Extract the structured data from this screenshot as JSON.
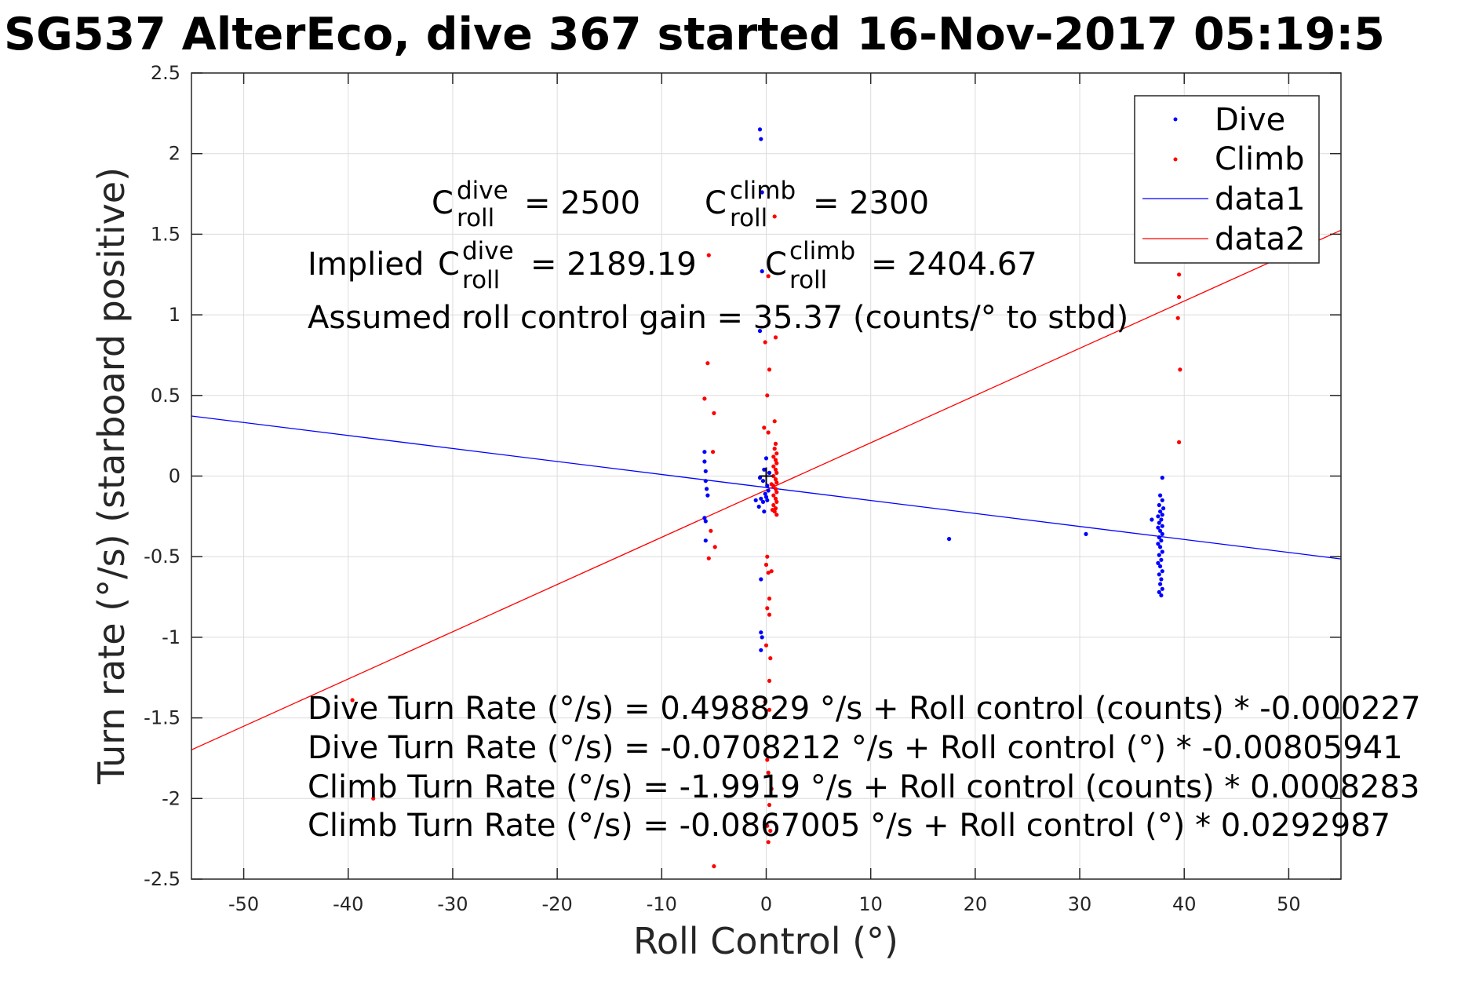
{
  "chart_data": {
    "type": "scatter",
    "title": "SG537 AlterEco, dive 367 started 16-Nov-2017 05:19:5",
    "xlabel": "Roll Control (°)",
    "ylabel": "Turn rate (°/s) (starboard positive)",
    "xlim": [
      -55,
      55
    ],
    "ylim": [
      -2.5,
      2.5
    ],
    "xticks": [
      -50,
      -40,
      -30,
      -20,
      -10,
      0,
      10,
      20,
      30,
      40,
      50
    ],
    "yticks": [
      -2.5,
      -2,
      -1.5,
      -1,
      -0.5,
      0,
      0.5,
      1,
      1.5,
      2,
      2.5
    ],
    "xtick_labels": [
      "-50",
      "-40",
      "-30",
      "-20",
      "-10",
      "0",
      "10",
      "20",
      "30",
      "40",
      "50"
    ],
    "ytick_labels": [
      "-2.5",
      "-2",
      "-1.5",
      "-1",
      "-0.5",
      "0",
      "0.5",
      "1",
      "1.5",
      "2",
      "2.5"
    ],
    "grid": true,
    "legend_position": "top-right",
    "series": [
      {
        "name": "Dive",
        "kind": "points",
        "color": "#0000ff",
        "points": [
          [
            -0.6,
            2.15
          ],
          [
            -0.5,
            2.09
          ],
          [
            -0.4,
            1.76
          ],
          [
            -0.4,
            1.27
          ],
          [
            -0.6,
            0.9
          ],
          [
            -5.9,
            0.15
          ],
          [
            -5.9,
            0.09
          ],
          [
            -5.8,
            0.03
          ],
          [
            -5.8,
            -0.03
          ],
          [
            -5.7,
            -0.08
          ],
          [
            -5.6,
            -0.12
          ],
          [
            -5.9,
            -0.26
          ],
          [
            -5.8,
            -0.28
          ],
          [
            -5.8,
            -0.4
          ],
          [
            0.0,
            0.11
          ],
          [
            -0.2,
            0.04
          ],
          [
            -0.6,
            -0.01
          ],
          [
            0.3,
            0.02
          ],
          [
            -0.3,
            -0.03
          ],
          [
            0.1,
            -0.06
          ],
          [
            0.2,
            -0.09
          ],
          [
            -0.1,
            -0.11
          ],
          [
            0.0,
            -0.13
          ],
          [
            -0.5,
            -0.14
          ],
          [
            -0.3,
            -0.16
          ],
          [
            0.1,
            -0.15
          ],
          [
            -1.0,
            -0.15
          ],
          [
            -0.7,
            -0.19
          ],
          [
            -0.2,
            -0.22
          ],
          [
            -0.5,
            -0.64
          ],
          [
            -0.5,
            -0.97
          ],
          [
            -0.4,
            -1.0
          ],
          [
            -0.5,
            -1.08
          ],
          [
            17.5,
            -0.39
          ],
          [
            30.6,
            -0.36
          ],
          [
            37.9,
            -0.01
          ],
          [
            37.7,
            -0.12
          ],
          [
            37.9,
            -0.15
          ],
          [
            37.6,
            -0.18
          ],
          [
            38.0,
            -0.2
          ],
          [
            37.7,
            -0.22
          ],
          [
            37.9,
            -0.24
          ],
          [
            37.5,
            -0.25
          ],
          [
            37.8,
            -0.27
          ],
          [
            36.9,
            -0.27
          ],
          [
            37.6,
            -0.29
          ],
          [
            37.9,
            -0.31
          ],
          [
            37.5,
            -0.32
          ],
          [
            37.7,
            -0.34
          ],
          [
            37.9,
            -0.36
          ],
          [
            37.6,
            -0.38
          ],
          [
            37.8,
            -0.4
          ],
          [
            37.5,
            -0.42
          ],
          [
            37.7,
            -0.44
          ],
          [
            37.9,
            -0.47
          ],
          [
            37.6,
            -0.49
          ],
          [
            37.8,
            -0.52
          ],
          [
            37.5,
            -0.54
          ],
          [
            37.7,
            -0.56
          ],
          [
            37.9,
            -0.59
          ],
          [
            37.6,
            -0.61
          ],
          [
            37.8,
            -0.64
          ],
          [
            37.7,
            -0.67
          ],
          [
            37.9,
            -0.7
          ],
          [
            37.6,
            -0.72
          ],
          [
            37.8,
            -0.74
          ]
        ]
      },
      {
        "name": "Climb",
        "kind": "points",
        "color": "#ff0000",
        "points": [
          [
            -5.5,
            1.37
          ],
          [
            -5.6,
            0.7
          ],
          [
            -5.9,
            0.48
          ],
          [
            -5.0,
            0.39
          ],
          [
            -5.1,
            0.15
          ],
          [
            -5.3,
            -0.34
          ],
          [
            -4.9,
            -0.44
          ],
          [
            -5.5,
            -0.51
          ],
          [
            0.8,
            1.61
          ],
          [
            0.2,
            1.24
          ],
          [
            0.9,
            0.86
          ],
          [
            -0.1,
            0.83
          ],
          [
            0.3,
            0.66
          ],
          [
            0.1,
            0.5
          ],
          [
            0.8,
            0.34
          ],
          [
            -0.2,
            0.3
          ],
          [
            0.2,
            0.27
          ],
          [
            0.9,
            0.2
          ],
          [
            0.8,
            0.17
          ],
          [
            1.0,
            0.14
          ],
          [
            0.7,
            0.12
          ],
          [
            0.9,
            0.1
          ],
          [
            1.0,
            0.08
          ],
          [
            0.7,
            0.06
          ],
          [
            0.9,
            0.04
          ],
          [
            1.0,
            0.02
          ],
          [
            0.7,
            0.0
          ],
          [
            0.9,
            -0.02
          ],
          [
            1.0,
            -0.04
          ],
          [
            0.7,
            -0.06
          ],
          [
            0.9,
            -0.08
          ],
          [
            1.0,
            -0.1
          ],
          [
            0.7,
            -0.12
          ],
          [
            0.9,
            -0.14
          ],
          [
            1.0,
            -0.16
          ],
          [
            0.7,
            -0.18
          ],
          [
            0.9,
            -0.2
          ],
          [
            0.8,
            -0.22
          ],
          [
            1.0,
            -0.24
          ],
          [
            0.6,
            -0.21
          ],
          [
            0.5,
            -0.05
          ],
          [
            0.1,
            -0.5
          ],
          [
            0.0,
            -0.55
          ],
          [
            0.2,
            -0.6
          ],
          [
            0.5,
            -0.59
          ],
          [
            0.3,
            -0.76
          ],
          [
            0.1,
            -0.82
          ],
          [
            0.3,
            -0.86
          ],
          [
            0.0,
            -1.05
          ],
          [
            0.4,
            -1.13
          ],
          [
            0.3,
            -1.27
          ],
          [
            -0.1,
            -1.4
          ],
          [
            0.3,
            -1.45
          ],
          [
            0.1,
            -1.76
          ],
          [
            0.2,
            -1.84
          ],
          [
            0.5,
            -1.94
          ],
          [
            0.3,
            -2.04
          ],
          [
            0.1,
            -2.17
          ],
          [
            0.4,
            -2.2
          ],
          [
            0.2,
            -2.27
          ],
          [
            -5.0,
            -2.42
          ],
          [
            -39.6,
            -1.39
          ],
          [
            -37.6,
            -2.0
          ],
          [
            39.5,
            1.25
          ],
          [
            39.5,
            1.11
          ],
          [
            39.4,
            0.98
          ],
          [
            39.6,
            0.66
          ],
          [
            39.5,
            0.21
          ]
        ]
      },
      {
        "name": "data1",
        "kind": "line",
        "color": "#0000ff",
        "x": [
          -55,
          55
        ],
        "y": [
          0.3724,
          -0.5141
        ]
      },
      {
        "name": "data2",
        "kind": "line",
        "color": "#ff0000",
        "x": [
          -55,
          55
        ],
        "y": [
          -1.6982,
          1.5247
        ]
      }
    ],
    "marker": {
      "x": 0.0,
      "y": 0.0,
      "symbol": "+",
      "color": "#000000"
    },
    "annotations": {
      "c_roll": {
        "base": "C",
        "sub": "roll",
        "dive_sup": "dive",
        "dive_value": "= 2500",
        "climb_sup": "climb",
        "climb_value": "= 2300"
      },
      "implied_prefix": "Implied ",
      "implied_dive_value": "= 2189.19",
      "implied_climb_value": "= 2404.67",
      "gain": "Assumed roll control gain = 35.37 (counts/° to stbd)",
      "fits": [
        "Dive Turn Rate (°/s) = 0.498829 °/s + Roll control (counts) * -0.000227",
        "Dive Turn Rate (°/s) = -0.0708212 °/s + Roll control (°) * -0.00805941",
        "Climb Turn Rate (°/s) = -1.9919 °/s + Roll control (counts) * 0.0008283",
        "Climb Turn Rate (°/s) = -0.0867005 °/s + Roll control (°) * 0.0292987"
      ]
    },
    "legend": [
      "Dive",
      "Climb",
      "data1",
      "data2"
    ]
  }
}
